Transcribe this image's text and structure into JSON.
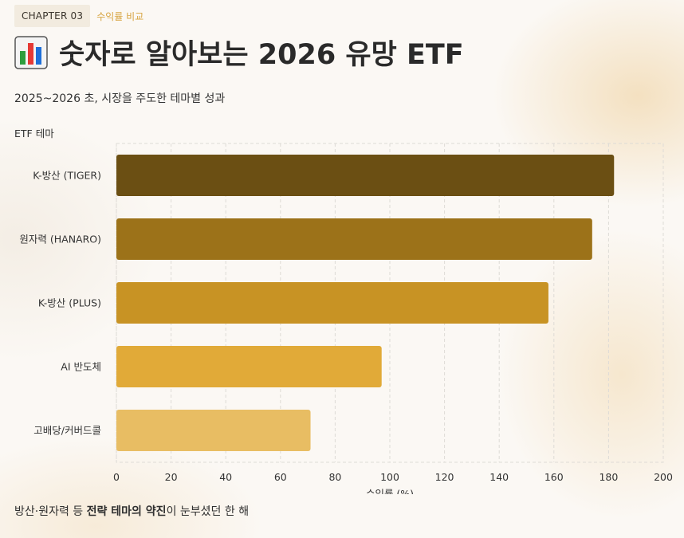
{
  "header": {
    "chapter_badge": "CHAPTER 03",
    "chapter_sub": "수익률 비교",
    "title": "숫자로 알아보는 2026 유망 ETF",
    "title_icon": "bar-chart-emoji-icon",
    "subtitle": "2025~2026 초, 시장을 주도한 테마별 성과"
  },
  "chart_data": {
    "type": "bar",
    "orientation": "horizontal",
    "categories": [
      "K-방산 (TIGER)",
      "원자력 (HANARO)",
      "K-방산 (PLUS)",
      "AI 반도체",
      "고배당/커버드콜"
    ],
    "values": [
      182,
      174,
      158,
      97,
      71
    ],
    "colors": [
      "#6b4f13",
      "#9c7219",
      "#c89324",
      "#e1aa38",
      "#e8bd63"
    ],
    "title": "",
    "xlabel": "수익률 (%)",
    "ylabel": "ETF 테마",
    "xlim": [
      0,
      200
    ],
    "xticks": [
      0,
      20,
      40,
      60,
      80,
      100,
      120,
      140,
      160,
      180,
      200
    ],
    "grid": true
  },
  "footer": {
    "prefix": "방산·원자력 등 ",
    "emphasis": "전략 테마의 약진",
    "suffix": "이 눈부셨던 한 해"
  }
}
